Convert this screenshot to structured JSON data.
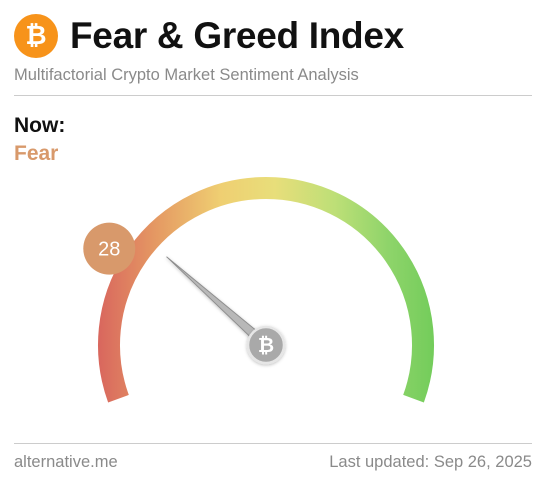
{
  "header": {
    "logo_glyph": "₿",
    "logo_icon": "bitcoin-icon",
    "title": "Fear & Greed Index",
    "subtitle": "Multifactorial Crypto Market Sentiment Analysis"
  },
  "current": {
    "label": "Now:",
    "classification": "Fear",
    "value": "28",
    "classification_color": "#d8996b"
  },
  "gauge": {
    "min": 0,
    "max": 100,
    "value": 28,
    "badge_color": "#d8996b",
    "hub_glyph": "₿",
    "hub_icon": "bitcoin-icon",
    "colors": [
      "#d9685e",
      "#e59a63",
      "#efcf72",
      "#e8de7a",
      "#bddf77",
      "#8ed46a",
      "#72cc5a"
    ]
  },
  "footer": {
    "source": "alternative.me",
    "updated": "Last updated: Sep 26, 2025"
  }
}
